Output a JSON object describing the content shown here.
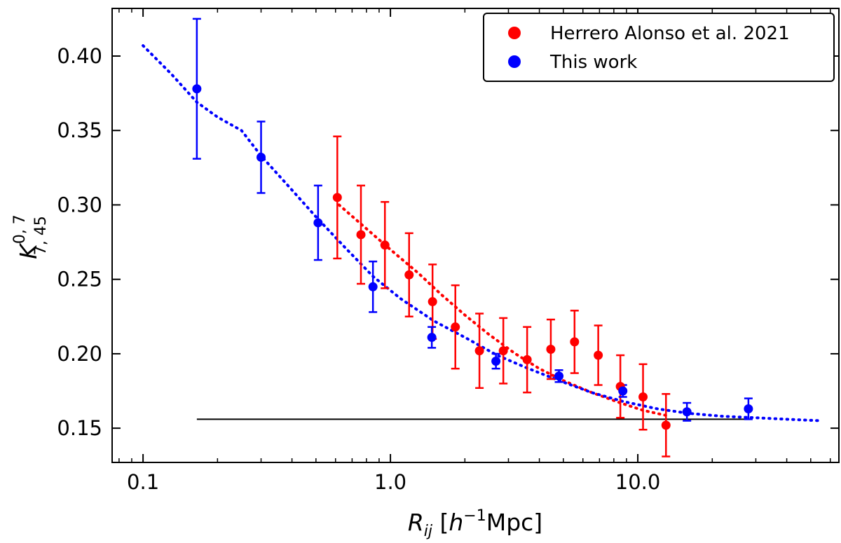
{
  "chart_data": {
    "type": "scatter",
    "x_scale": "log",
    "xlim": [
      0.075,
      65
    ],
    "ylim": [
      0.127,
      0.432
    ],
    "xticks": [
      {
        "value": 0.1,
        "label": "0.1"
      },
      {
        "value": 1.0,
        "label": "1.0"
      },
      {
        "value": 10.0,
        "label": "10.0"
      }
    ],
    "yticks": [
      {
        "value": 0.15,
        "label": "0.15"
      },
      {
        "value": 0.2,
        "label": "0.20"
      },
      {
        "value": 0.25,
        "label": "0.25"
      },
      {
        "value": 0.3,
        "label": "0.30"
      },
      {
        "value": 0.35,
        "label": "0.35"
      },
      {
        "value": 0.4,
        "label": "0.40"
      }
    ],
    "xlabel": {
      "main": "R",
      "sub": "ij",
      "open": " [",
      "h": "h",
      "sup": "−1",
      "unit": "Mpc]"
    },
    "ylabel": {
      "main": "K",
      "sub": "7, 45",
      "sup": "0, 7"
    },
    "legend": {
      "location": "upper-right",
      "entries": [
        {
          "label": "Herrero Alonso et al. 2021",
          "color": "#ff0000"
        },
        {
          "label": "This work",
          "color": "#0000ff"
        }
      ]
    },
    "series": [
      {
        "name": "Herrero Alonso et al. 2021",
        "color": "#ff0000",
        "x": [
          0.61,
          0.76,
          0.95,
          1.19,
          1.48,
          1.83,
          2.29,
          2.86,
          3.57,
          4.45,
          5.55,
          6.92,
          8.5,
          10.5,
          13.0
        ],
        "y": [
          0.305,
          0.28,
          0.273,
          0.253,
          0.235,
          0.218,
          0.202,
          0.202,
          0.196,
          0.203,
          0.208,
          0.199,
          0.178,
          0.171,
          0.152
        ],
        "err": [
          0.041,
          0.033,
          0.029,
          0.028,
          0.025,
          0.028,
          0.025,
          0.022,
          0.022,
          0.02,
          0.021,
          0.02,
          0.021,
          0.022,
          0.021
        ]
      },
      {
        "name": "This work",
        "color": "#0000ff",
        "x": [
          0.165,
          0.3,
          0.51,
          0.85,
          1.47,
          2.67,
          4.8,
          8.7,
          15.8,
          28.0
        ],
        "y": [
          0.378,
          0.332,
          0.288,
          0.245,
          0.211,
          0.195,
          0.185,
          0.175,
          0.161,
          0.163
        ],
        "err": [
          0.047,
          0.024,
          0.025,
          0.017,
          0.007,
          0.005,
          0.004,
          0.004,
          0.006,
          0.007
        ]
      }
    ],
    "fit_lines": [
      {
        "name": "Herrero Alonso et al. 2021 fit",
        "color": "#ff0000",
        "style": "dotted",
        "x": [
          0.62,
          0.8,
          1.0,
          1.3,
          1.6,
          2.0,
          2.5,
          3.2,
          4.0,
          5.0,
          6.5,
          8.5,
          10.5,
          13.5
        ],
        "y": [
          0.3,
          0.284,
          0.27,
          0.254,
          0.24,
          0.226,
          0.213,
          0.2,
          0.19,
          0.182,
          0.174,
          0.167,
          0.162,
          0.158
        ]
      },
      {
        "name": "This work fit",
        "color": "#0000ff",
        "style": "dotted",
        "x": [
          0.1,
          0.13,
          0.165,
          0.2,
          0.25,
          0.3,
          0.4,
          0.5,
          0.65,
          0.85,
          1.1,
          1.5,
          2.0,
          2.7,
          3.5,
          4.8,
          6.5,
          8.7,
          12.0,
          16.0,
          22.0,
          30.0,
          40.0,
          55.0
        ],
        "y": [
          0.407,
          0.388,
          0.369,
          0.359,
          0.35,
          0.333,
          0.31,
          0.292,
          0.272,
          0.252,
          0.237,
          0.222,
          0.211,
          0.199,
          0.191,
          0.182,
          0.174,
          0.168,
          0.163,
          0.16,
          0.158,
          0.157,
          0.156,
          0.155
        ]
      }
    ],
    "reference_line": {
      "color": "#000000",
      "x": [
        0.165,
        28.0
      ],
      "y": 0.156
    }
  }
}
